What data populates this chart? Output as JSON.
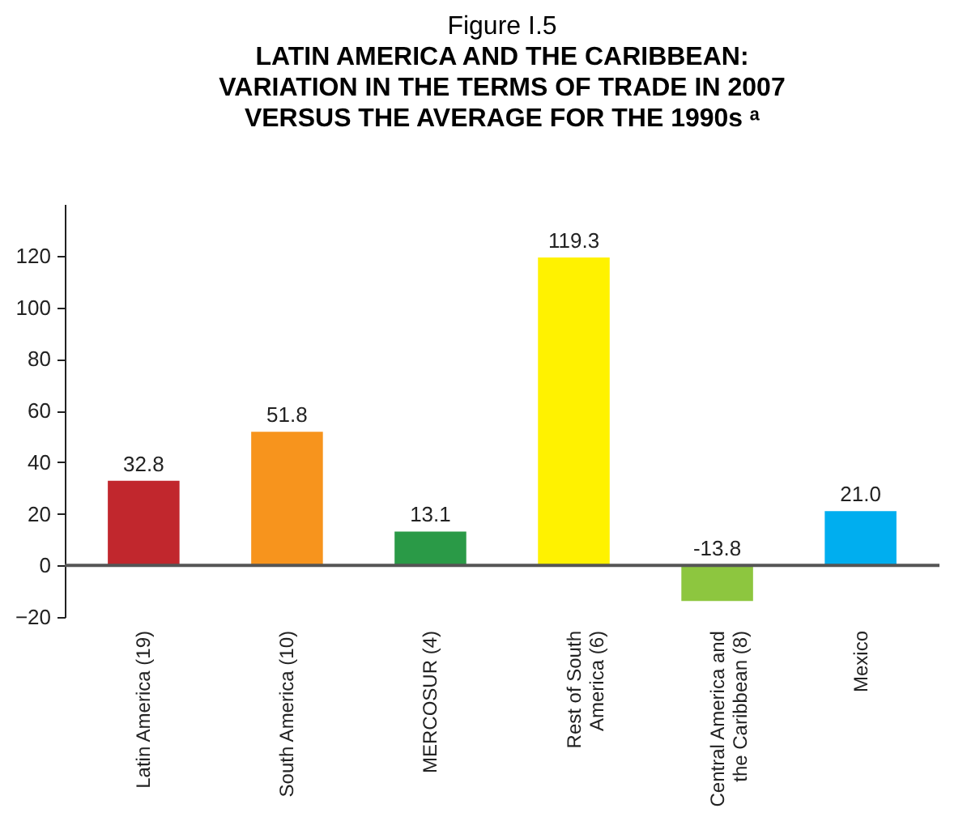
{
  "chart_data": {
    "type": "bar",
    "title": "Figure I.5",
    "subtitle": "LATIN AMERICA AND THE CARIBBEAN: VARIATION IN THE TERMS OF TRADE IN 2007 VERSUS THE AVERAGE FOR THE 1990s ᵃ",
    "categories": [
      "Latin America (19)",
      "South America (10)",
      "MERCOSUR (4)",
      "Rest of South America (6)",
      "Central America and the Caribbean (8)",
      "Mexico"
    ],
    "values": [
      32.8,
      51.8,
      13.1,
      119.3,
      -13.8,
      21.0
    ],
    "value_labels": [
      "32.8",
      "51.8",
      "13.1",
      "119.3",
      "-13.8",
      "21.0"
    ],
    "colors": [
      "#c1272d",
      "#f7941d",
      "#2a9a47",
      "#fff200",
      "#8dc63f",
      "#00aeef"
    ],
    "ylim": [
      -20,
      140
    ],
    "yticks": [
      -20,
      0,
      20,
      40,
      60,
      80,
      100,
      120
    ],
    "ref_lines": [
      {
        "axis": "y",
        "value": 0,
        "color": "#555555"
      }
    ]
  }
}
